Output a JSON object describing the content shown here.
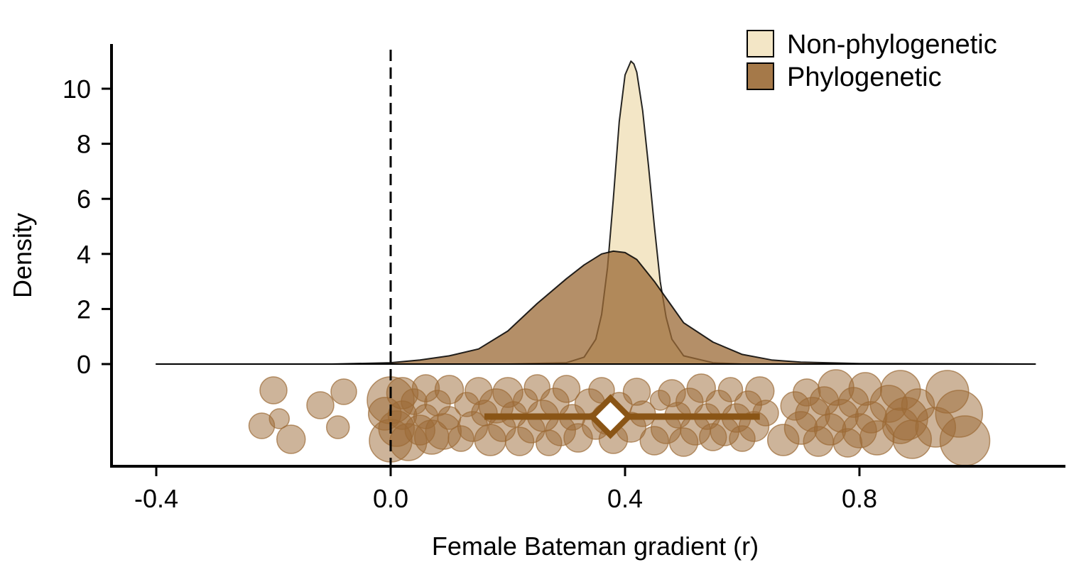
{
  "chart_data": {
    "type": "area",
    "xlabel": "Female Bateman gradient (r)",
    "ylabel": "Density",
    "xlim": [
      -0.4,
      1.1
    ],
    "ylim": [
      0,
      11
    ],
    "x_ticks": [
      -0.4,
      0.0,
      0.4,
      0.8
    ],
    "x_tick_labels": [
      "-0.4",
      "0.0",
      "0.4",
      "0.8"
    ],
    "y_ticks": [
      0,
      2,
      4,
      6,
      8,
      10
    ],
    "y_tick_labels": [
      "0",
      "2",
      "4",
      "6",
      "8",
      "10"
    ],
    "reference_line": {
      "x": 0.0,
      "style": "dashed"
    },
    "legend": {
      "position": "top-right"
    },
    "series": [
      {
        "name": "Non-phylogenetic",
        "color": "#f3e6c6",
        "x": [
          -0.4,
          0.2,
          0.3,
          0.33,
          0.35,
          0.36,
          0.37,
          0.38,
          0.39,
          0.4,
          0.41,
          0.415,
          0.42,
          0.43,
          0.44,
          0.45,
          0.46,
          0.47,
          0.48,
          0.5,
          0.55,
          0.6,
          1.1
        ],
        "y": [
          0,
          0,
          0.05,
          0.25,
          0.9,
          1.8,
          3.5,
          6.0,
          8.8,
          10.5,
          11.0,
          10.9,
          10.6,
          9.2,
          7.2,
          5.0,
          3.0,
          1.7,
          0.9,
          0.3,
          0.05,
          0,
          0
        ]
      },
      {
        "name": "Phylogenetic",
        "color": "#9b6a35",
        "x": [
          -0.4,
          -0.1,
          0.0,
          0.05,
          0.1,
          0.15,
          0.2,
          0.25,
          0.3,
          0.33,
          0.36,
          0.38,
          0.4,
          0.42,
          0.45,
          0.48,
          0.5,
          0.55,
          0.6,
          0.65,
          0.7,
          0.8,
          1.1
        ],
        "y": [
          0,
          0,
          0.05,
          0.15,
          0.3,
          0.55,
          1.2,
          2.2,
          3.1,
          3.6,
          4.0,
          4.1,
          4.05,
          3.8,
          3.0,
          2.1,
          1.5,
          0.8,
          0.35,
          0.15,
          0.07,
          0.02,
          0
        ]
      }
    ],
    "points": {
      "color": "#9b6a35",
      "data": [
        {
          "x": -0.22,
          "s": 1.0
        },
        {
          "x": -0.2,
          "s": 1.1
        },
        {
          "x": -0.19,
          "s": 0.6
        },
        {
          "x": -0.17,
          "s": 1.2
        },
        {
          "x": -0.12,
          "s": 1.1
        },
        {
          "x": -0.09,
          "s": 0.8
        },
        {
          "x": -0.08,
          "s": 1.0
        },
        {
          "x": -0.01,
          "s": 1.5
        },
        {
          "x": 0.0,
          "s": 2.2
        },
        {
          "x": 0.0,
          "s": 2.5
        },
        {
          "x": 0.01,
          "s": 1.7
        },
        {
          "x": 0.02,
          "s": 1.4
        },
        {
          "x": 0.02,
          "s": 1.2
        },
        {
          "x": 0.03,
          "s": 1.8
        },
        {
          "x": 0.04,
          "s": 1.0
        },
        {
          "x": 0.05,
          "s": 1.3
        },
        {
          "x": 0.06,
          "s": 1.1
        },
        {
          "x": 0.06,
          "s": 0.9
        },
        {
          "x": 0.07,
          "s": 1.6
        },
        {
          "x": 0.08,
          "s": 1.0
        },
        {
          "x": 0.09,
          "s": 1.7
        },
        {
          "x": 0.1,
          "s": 1.2
        },
        {
          "x": 0.1,
          "s": 0.8
        },
        {
          "x": 0.12,
          "s": 1.0
        },
        {
          "x": 0.13,
          "s": 0.9
        },
        {
          "x": 0.14,
          "s": 1.3
        },
        {
          "x": 0.15,
          "s": 1.1
        },
        {
          "x": 0.16,
          "s": 1.0
        },
        {
          "x": 0.17,
          "s": 1.4
        },
        {
          "x": 0.18,
          "s": 1.6
        },
        {
          "x": 0.19,
          "s": 1.1
        },
        {
          "x": 0.2,
          "s": 1.3
        },
        {
          "x": 0.21,
          "s": 1.0
        },
        {
          "x": 0.22,
          "s": 1.2
        },
        {
          "x": 0.23,
          "s": 0.9
        },
        {
          "x": 0.24,
          "s": 1.1
        },
        {
          "x": 0.25,
          "s": 1.0
        },
        {
          "x": 0.26,
          "s": 1.4
        },
        {
          "x": 0.27,
          "s": 1.0
        },
        {
          "x": 0.28,
          "s": 1.2
        },
        {
          "x": 0.29,
          "s": 1.3
        },
        {
          "x": 0.3,
          "s": 1.1
        },
        {
          "x": 0.31,
          "s": 1.0
        },
        {
          "x": 0.32,
          "s": 1.2
        },
        {
          "x": 0.34,
          "s": 1.3
        },
        {
          "x": 0.35,
          "s": 1.1
        },
        {
          "x": 0.36,
          "s": 1.0
        },
        {
          "x": 0.37,
          "s": 1.4
        },
        {
          "x": 0.38,
          "s": 1.2
        },
        {
          "x": 0.39,
          "s": 1.0
        },
        {
          "x": 0.41,
          "s": 1.3
        },
        {
          "x": 0.42,
          "s": 1.1
        },
        {
          "x": 0.43,
          "s": 1.0
        },
        {
          "x": 0.45,
          "s": 1.2
        },
        {
          "x": 0.46,
          "s": 0.6
        },
        {
          "x": 0.47,
          "s": 1.3
        },
        {
          "x": 0.48,
          "s": 1.1
        },
        {
          "x": 0.49,
          "s": 1.0
        },
        {
          "x": 0.5,
          "s": 1.2
        },
        {
          "x": 0.51,
          "s": 1.1
        },
        {
          "x": 0.52,
          "s": 1.3
        },
        {
          "x": 0.53,
          "s": 1.2
        },
        {
          "x": 0.54,
          "s": 1.0
        },
        {
          "x": 0.55,
          "s": 1.1
        },
        {
          "x": 0.56,
          "s": 1.0
        },
        {
          "x": 0.57,
          "s": 1.2
        },
        {
          "x": 0.58,
          "s": 0.9
        },
        {
          "x": 0.59,
          "s": 1.2
        },
        {
          "x": 0.6,
          "s": 1.0
        },
        {
          "x": 0.61,
          "s": 1.1
        },
        {
          "x": 0.62,
          "s": 1.3
        },
        {
          "x": 0.63,
          "s": 1.2
        },
        {
          "x": 0.64,
          "s": 1.0
        },
        {
          "x": 0.67,
          "s": 1.4
        },
        {
          "x": 0.69,
          "s": 1.2
        },
        {
          "x": 0.7,
          "s": 1.5
        },
        {
          "x": 0.71,
          "s": 1.1
        },
        {
          "x": 0.72,
          "s": 1.6
        },
        {
          "x": 0.73,
          "s": 1.3
        },
        {
          "x": 0.74,
          "s": 1.2
        },
        {
          "x": 0.75,
          "s": 1.4
        },
        {
          "x": 0.76,
          "s": 1.7
        },
        {
          "x": 0.77,
          "s": 1.5
        },
        {
          "x": 0.78,
          "s": 1.2
        },
        {
          "x": 0.79,
          "s": 1.3
        },
        {
          "x": 0.8,
          "s": 1.6
        },
        {
          "x": 0.81,
          "s": 1.5
        },
        {
          "x": 0.82,
          "s": 1.4
        },
        {
          "x": 0.83,
          "s": 1.6
        },
        {
          "x": 0.85,
          "s": 1.8
        },
        {
          "x": 0.87,
          "s": 1.7
        },
        {
          "x": 0.87,
          "s": 2.0
        },
        {
          "x": 0.88,
          "s": 2.2
        },
        {
          "x": 0.89,
          "s": 1.9
        },
        {
          "x": 0.9,
          "s": 1.5
        },
        {
          "x": 0.93,
          "s": 2.0
        },
        {
          "x": 0.95,
          "s": 2.2
        },
        {
          "x": 0.97,
          "s": 2.5
        },
        {
          "x": 0.98,
          "s": 2.7
        }
      ]
    },
    "estimate": {
      "mean": 0.375,
      "ci_low": 0.16,
      "ci_high": 0.63,
      "color": "#8a5516"
    }
  }
}
